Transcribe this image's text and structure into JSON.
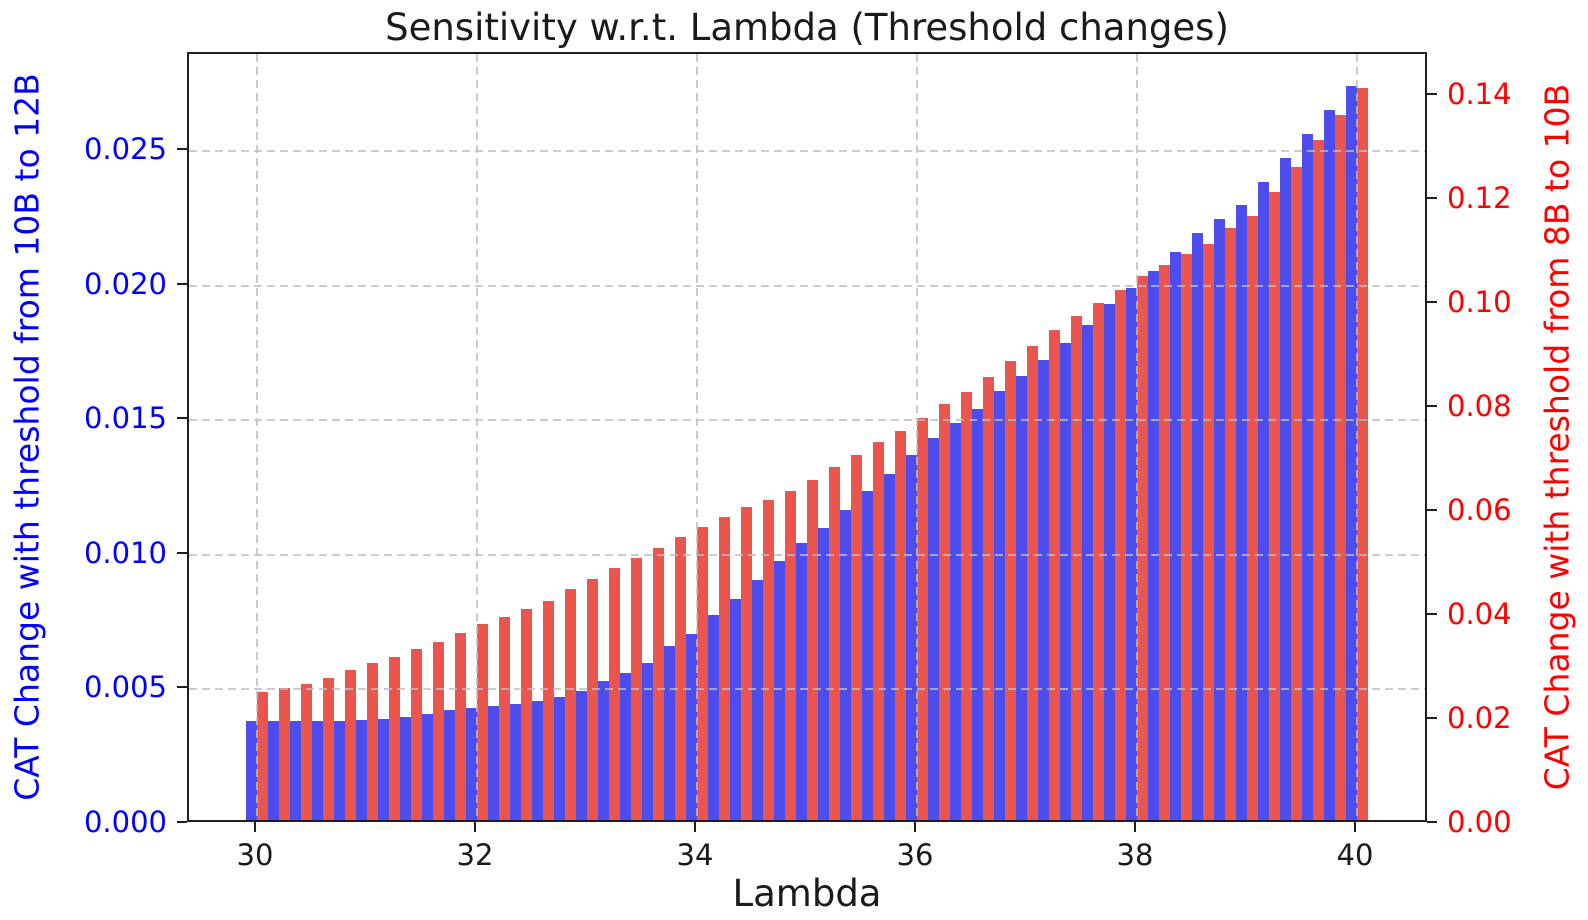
{
  "chart_data": {
    "type": "bar",
    "title": "Sensitivity w.r.t. Lambda (Threshold changes)",
    "xlabel": "Lambda",
    "grid": true,
    "legend": null,
    "x": [
      30.0,
      30.2,
      30.4,
      30.6,
      30.8,
      31.0,
      31.2,
      31.4,
      31.6,
      31.8,
      32.0,
      32.2,
      32.4,
      32.6,
      32.8,
      33.0,
      33.2,
      33.4,
      33.6,
      33.8,
      34.0,
      34.2,
      34.4,
      34.6,
      34.8,
      35.0,
      35.2,
      35.4,
      35.6,
      35.8,
      36.0,
      36.2,
      36.4,
      36.6,
      36.8,
      37.0,
      37.2,
      37.4,
      37.6,
      37.8,
      38.0,
      38.2,
      38.4,
      38.6,
      38.8,
      39.0,
      39.2,
      39.4,
      39.6,
      39.8,
      40.0
    ],
    "series": [
      {
        "name": "CAT Change with threshold from 10B to 12B",
        "axis": "left",
        "color": "#4d4dee",
        "values": [
          0.00368,
          0.00368,
          0.00368,
          0.00368,
          0.00368,
          0.0037,
          0.00374,
          0.00382,
          0.00395,
          0.00408,
          0.00415,
          0.00422,
          0.0043,
          0.00441,
          0.00456,
          0.00478,
          0.00515,
          0.00546,
          0.00582,
          0.00646,
          0.00693,
          0.00762,
          0.00821,
          0.00893,
          0.00964,
          0.0103,
          0.01085,
          0.01153,
          0.01222,
          0.01286,
          0.01358,
          0.0142,
          0.01476,
          0.01528,
          0.01594,
          0.01652,
          0.01711,
          0.01774,
          0.01838,
          0.01917,
          0.01977,
          0.02042,
          0.0211,
          0.0218,
          0.02235,
          0.02285,
          0.0237,
          0.0246,
          0.0255,
          0.0264,
          0.0273
        ]
      },
      {
        "name": "CAT Change with threshold from 8B to 10B",
        "axis": "right",
        "color": "#ea564e",
        "values": [
          0.0246,
          0.0254,
          0.0262,
          0.0274,
          0.0288,
          0.0301,
          0.0313,
          0.0328,
          0.0343,
          0.0359,
          0.0377,
          0.039,
          0.0406,
          0.0422,
          0.0444,
          0.0464,
          0.0484,
          0.0504,
          0.0524,
          0.0544,
          0.0563,
          0.0582,
          0.0601,
          0.0615,
          0.0633,
          0.0654,
          0.0678,
          0.0702,
          0.0726,
          0.0749,
          0.0774,
          0.08,
          0.0824,
          0.0852,
          0.0882,
          0.0912,
          0.0942,
          0.097,
          0.0995,
          0.102,
          0.1046,
          0.1068,
          0.1088,
          0.1108,
          0.1138,
          0.1161,
          0.1208,
          0.1255,
          0.1308,
          0.1356,
          0.1407
        ]
      }
    ],
    "axes": {
      "x": {
        "label": "Lambda",
        "color": "#1a1a1a",
        "ticks": [
          30,
          32,
          34,
          36,
          38,
          40
        ],
        "tick_labels": [
          "30",
          "32",
          "34",
          "36",
          "38",
          "40"
        ],
        "lim": [
          29.382,
          40.655
        ]
      },
      "y_left": {
        "label": "CAT Change with threshold from 10B to 12B",
        "color": "#0000ff",
        "ticks": [
          0.0,
          0.005,
          0.01,
          0.015,
          0.02,
          0.025
        ],
        "tick_labels": [
          "0.000",
          "0.005",
          "0.010",
          "0.015",
          "0.020",
          "0.025"
        ],
        "lim": [
          0,
          0.02862
        ]
      },
      "y_right": {
        "label": "CAT Change with threshold from 8B to 10B",
        "color": "#ff0000",
        "ticks": [
          0.0,
          0.02,
          0.04,
          0.06,
          0.08,
          0.1,
          0.12,
          0.14
        ],
        "tick_labels": [
          "0.00",
          "0.02",
          "0.04",
          "0.06",
          "0.08",
          "0.10",
          "0.12",
          "0.14"
        ],
        "lim": [
          0,
          0.14808
        ]
      }
    }
  }
}
